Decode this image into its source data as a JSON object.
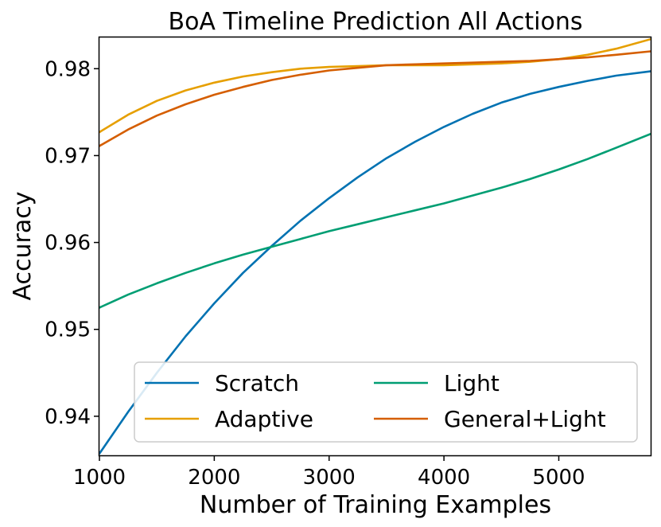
{
  "chart_data": {
    "type": "line",
    "title": "BoA Timeline Prediction All Actions",
    "xlabel": "Number of Training Examples",
    "ylabel": "Accuracy",
    "xlim": [
      1000,
      5800
    ],
    "ylim": [
      0.9355,
      0.9836
    ],
    "xticks": [
      1000,
      2000,
      3000,
      4000,
      5000
    ],
    "yticks": [
      0.94,
      0.95,
      0.96,
      0.97,
      0.98
    ],
    "xtick_labels": [
      "1000",
      "2000",
      "3000",
      "4000",
      "5000"
    ],
    "ytick_labels": [
      "0.94",
      "0.95",
      "0.96",
      "0.97",
      "0.98"
    ],
    "grid": false,
    "legend_placement": "bottom-center",
    "legend_columns": 2,
    "series": [
      {
        "name": "Scratch",
        "color": "#0072B2",
        "x": [
          1000,
          1250,
          1500,
          1750,
          2000,
          2250,
          2500,
          2750,
          3000,
          3250,
          3500,
          3750,
          4000,
          4250,
          4500,
          4750,
          5000,
          5250,
          5500,
          5800
        ],
        "y": [
          0.9357,
          0.9405,
          0.945,
          0.9492,
          0.953,
          0.9565,
          0.9596,
          0.9625,
          0.9651,
          0.9675,
          0.9697,
          0.9716,
          0.9733,
          0.9748,
          0.9761,
          0.9771,
          0.9779,
          0.9786,
          0.9792,
          0.9797
        ]
      },
      {
        "name": "Light",
        "color": "#009E73",
        "x": [
          1000,
          1250,
          1500,
          1750,
          2000,
          2250,
          2500,
          2750,
          3000,
          3250,
          3500,
          3750,
          4000,
          4250,
          4500,
          4750,
          5000,
          5250,
          5500,
          5800
        ],
        "y": [
          0.9525,
          0.954,
          0.9553,
          0.9565,
          0.9576,
          0.9586,
          0.9595,
          0.9604,
          0.9613,
          0.9621,
          0.9629,
          0.9637,
          0.9645,
          0.9654,
          0.9663,
          0.9673,
          0.9684,
          0.9696,
          0.9709,
          0.9725
        ]
      },
      {
        "name": "Adaptive",
        "color": "#E69F00",
        "x": [
          1000,
          1250,
          1500,
          1750,
          2000,
          2250,
          2500,
          2750,
          3000,
          3250,
          3500,
          3750,
          4000,
          4250,
          4500,
          4750,
          5000,
          5250,
          5500,
          5800
        ],
        "y": [
          0.9727,
          0.9747,
          0.9763,
          0.9775,
          0.9784,
          0.9791,
          0.9796,
          0.98,
          0.9802,
          0.9803,
          0.9804,
          0.9804,
          0.9804,
          0.9805,
          0.9806,
          0.9808,
          0.9811,
          0.9816,
          0.9823,
          0.9834
        ]
      },
      {
        "name": "General+Light",
        "color": "#D55E00",
        "x": [
          1000,
          1250,
          1500,
          1750,
          2000,
          2250,
          2500,
          2750,
          3000,
          3250,
          3500,
          3750,
          4000,
          4250,
          4500,
          4750,
          5000,
          5250,
          5500,
          5800
        ],
        "y": [
          0.9711,
          0.973,
          0.9746,
          0.9759,
          0.977,
          0.9779,
          0.9787,
          0.9793,
          0.9798,
          0.9801,
          0.9804,
          0.9805,
          0.9806,
          0.9807,
          0.9808,
          0.9809,
          0.9811,
          0.9813,
          0.9816,
          0.982
        ]
      }
    ],
    "legend_order": [
      "Scratch",
      "Adaptive",
      "Light",
      "General+Light"
    ]
  }
}
